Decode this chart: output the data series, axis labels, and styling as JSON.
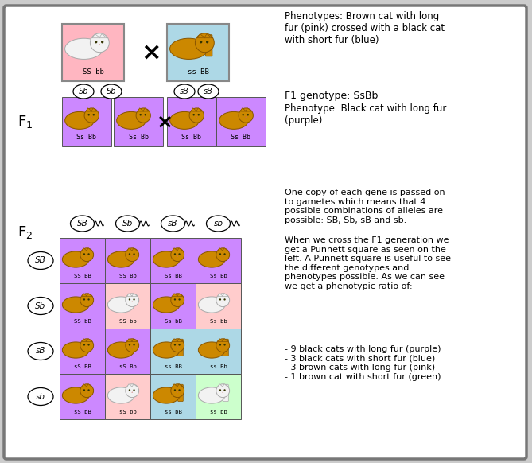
{
  "bg_color": "#ffffff",
  "outer_bg": "#cccccc",
  "border_color": "#888888",
  "pink_color": "#ffb6c1",
  "blue_color": "#add8e6",
  "purple_color": "#cc88ff",
  "light_pink_color": "#ffcccc",
  "light_green_color": "#ccffcc",
  "parent1_label": "SS bb",
  "parent2_label": "ss BB",
  "f1_labels": [
    "Ss Bb",
    "Ss Bb",
    "Ss Bb",
    "Ss Bb"
  ],
  "f1_genotype_text": "F1 genotype: SsBb",
  "f1_phenotype_text": "Phenotype: Black cat with long fur\n(purple)",
  "parent_desc": "Phenotypes: Brown cat with long\nfur (pink) crossed with a black cat\nwith short fur (blue)",
  "f2_col_headers": [
    "SB",
    "Sb",
    "sB",
    "sb"
  ],
  "f2_row_headers": [
    "SB",
    "Sb",
    "sB",
    "sb"
  ],
  "f2_genotypes": [
    [
      "SS BB",
      "SS Bb",
      "Ss BB",
      "Ss Bb"
    ],
    [
      "SS bB",
      "SS bb",
      "Ss bB",
      "Ss bb"
    ],
    [
      "sS BB",
      "sS Bb",
      "ss BB",
      "ss Bb"
    ],
    [
      "sS bB",
      "sS bb",
      "ss bB",
      "ss bb"
    ]
  ],
  "f2_colors": [
    [
      "#cc88ff",
      "#cc88ff",
      "#cc88ff",
      "#cc88ff"
    ],
    [
      "#cc88ff",
      "#ffcccc",
      "#cc88ff",
      "#ffcccc"
    ],
    [
      "#cc88ff",
      "#cc88ff",
      "#add8e6",
      "#add8e6"
    ],
    [
      "#cc88ff",
      "#ffcccc",
      "#add8e6",
      "#ccffcc"
    ]
  ],
  "f2_cat_types": [
    [
      "brown",
      "brown",
      "brown",
      "brown"
    ],
    [
      "brown",
      "white",
      "brown",
      "white"
    ],
    [
      "brown",
      "brown",
      "brown_short",
      "brown_short"
    ],
    [
      "brown",
      "white",
      "brown_short",
      "white_short"
    ]
  ],
  "right_text1": "One copy of each gene is passed on\nto gametes which means that 4\npossible combinations of alleles are\npossible: SB, Sb, sB and sb.",
  "right_text2": "When we cross the F1 generation we\nget a Punnett square as seen on the\nleft. A Punnett square is useful to see\nthe different genotypes and\nphenotypes possible. As we can see\nwe get a phenotypic ratio of:",
  "right_text3": "- 9 black cats with long fur (purple)\n- 3 black cats with short fur (blue)\n- 3 brown cats with long fur (pink)\n- 1 brown cat with short fur (green)"
}
